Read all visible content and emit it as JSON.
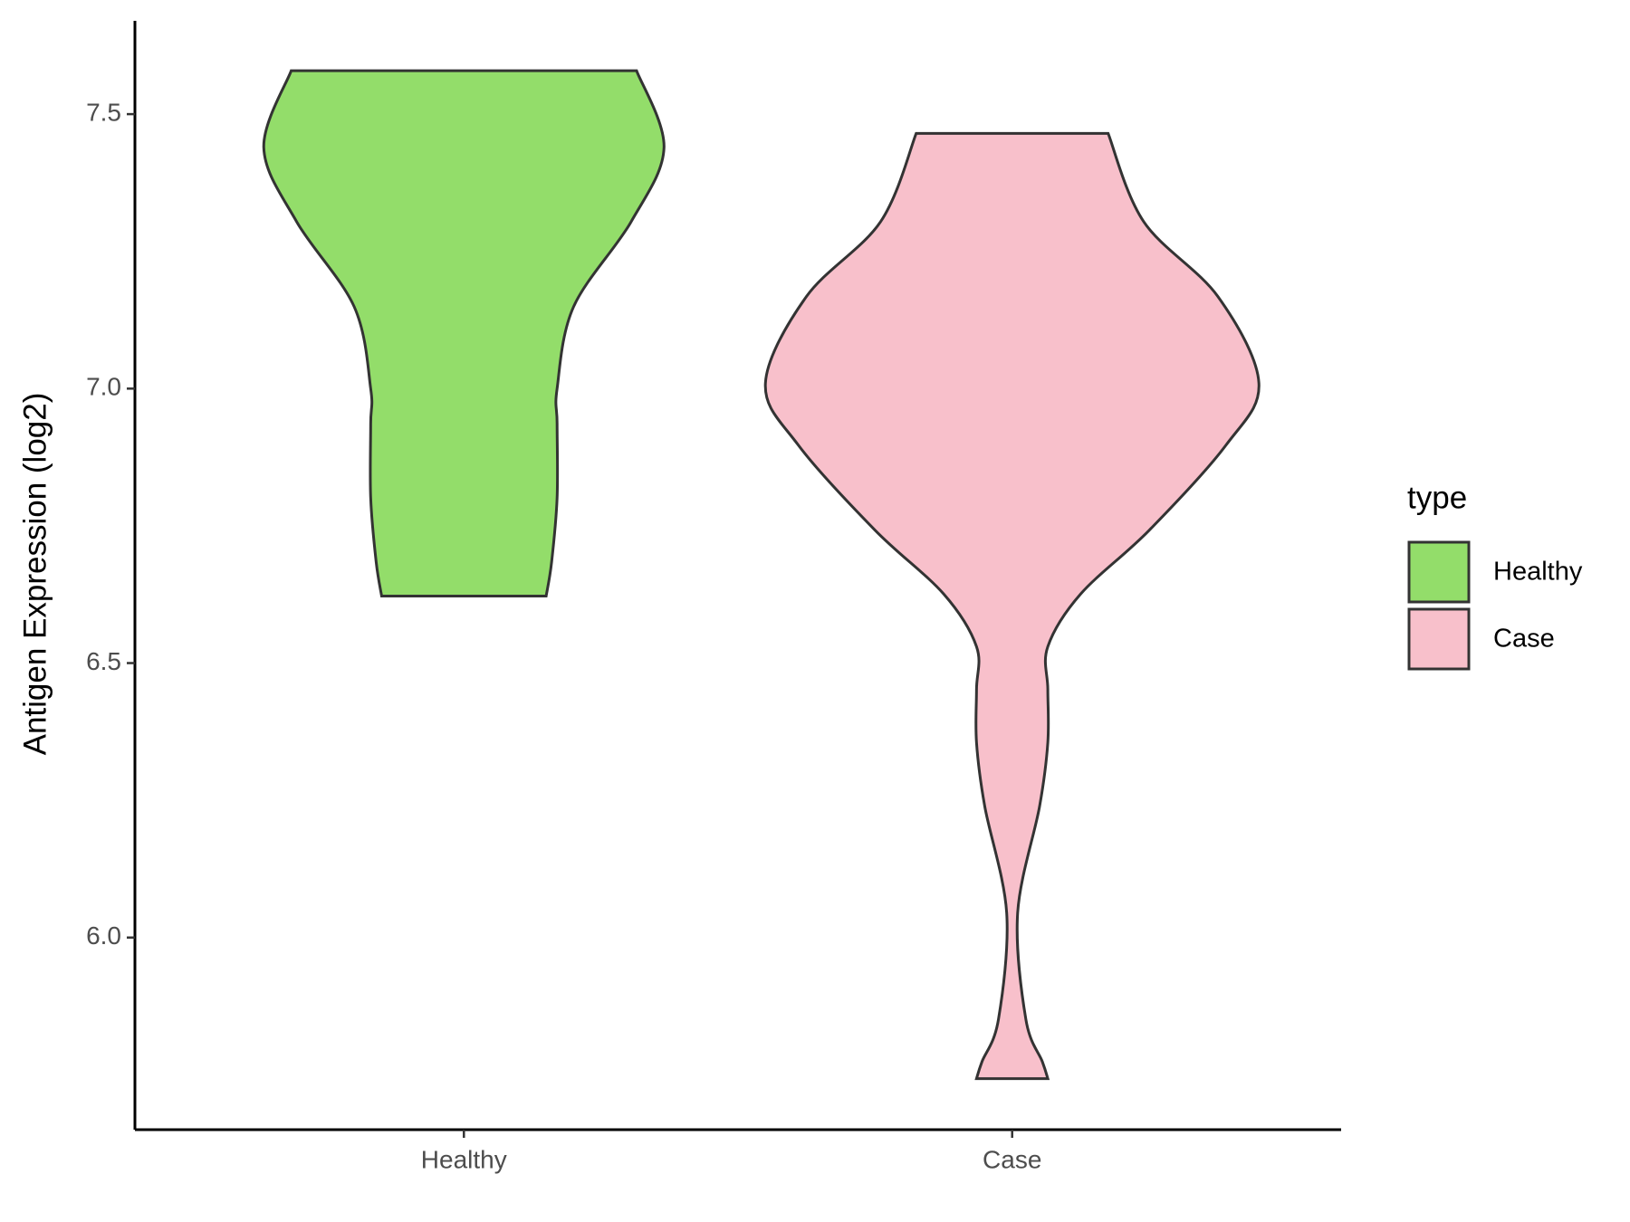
{
  "chart_data": {
    "type": "violin",
    "y_label": "Antigen Expression (log2)",
    "categories": [
      "Healthy",
      "Case"
    ],
    "legend_title": "type",
    "series": [
      {
        "name": "Healthy",
        "color": "#93dd6a",
        "y": [
          7.579,
          7.439,
          7.304,
          7.149,
          7.0,
          6.936,
          6.801,
          6.684,
          6.622
        ],
        "widths": [
          0.63,
          0.73,
          0.61,
          0.4,
          0.34,
          0.34,
          0.34,
          0.32,
          0.3
        ]
      },
      {
        "name": "Case",
        "color": "#f8c0cb",
        "y": [
          7.465,
          7.304,
          7.168,
          7.01,
          6.897,
          6.742,
          6.626,
          6.53,
          6.452,
          6.355,
          6.239,
          6.045,
          5.851,
          5.774,
          5.743
        ],
        "widths": [
          0.35,
          0.48,
          0.75,
          0.9,
          0.78,
          0.5,
          0.25,
          0.13,
          0.13,
          0.13,
          0.1,
          0.02,
          0.05,
          0.11,
          0.13
        ]
      }
    ],
    "ylim": [
      5.65,
      7.67
    ],
    "yticks": [
      {
        "value": 6.0,
        "label": "6.0"
      },
      6.5,
      {
        "value": 7.0,
        "label": "7.0"
      },
      7.5
    ],
    "grid": false
  }
}
